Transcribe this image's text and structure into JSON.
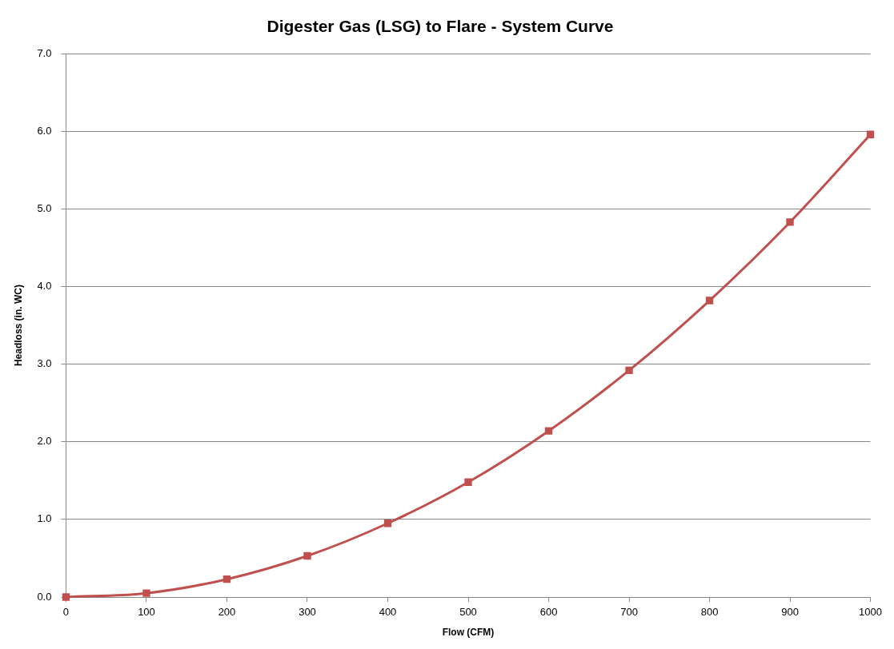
{
  "chart_data": {
    "type": "line",
    "title": "Digester Gas (LSG) to Flare - System Curve",
    "xlabel": "Flow (CFM)",
    "ylabel": "Headloss (in. WC)",
    "x": [
      0,
      100,
      200,
      300,
      400,
      500,
      600,
      700,
      800,
      900,
      1000
    ],
    "series": [
      {
        "color": "#c0504d",
        "values": [
          0,
          0.05,
          0.23,
          0.53,
          0.95,
          1.48,
          2.14,
          2.92,
          3.82,
          4.83,
          5.96
        ]
      }
    ],
    "xlim": [
      0,
      1000
    ],
    "xticks": [
      0,
      100,
      200,
      300,
      400,
      500,
      600,
      700,
      800,
      900,
      1000
    ],
    "ylim": [
      0,
      7
    ],
    "yticks": [
      {
        "value": 0,
        "label": "0.0"
      },
      {
        "value": 1,
        "label": "1.0"
      },
      {
        "value": 2,
        "label": "2.0"
      },
      {
        "value": 3,
        "label": "3.0"
      },
      {
        "value": 4,
        "label": "4.0"
      },
      {
        "value": 5,
        "label": "5.0"
      },
      {
        "value": 6,
        "label": "6.0"
      },
      {
        "value": 7,
        "label": "7.0"
      }
    ],
    "grid": "y",
    "marker": "square",
    "line_style": "solid",
    "legend": false
  }
}
